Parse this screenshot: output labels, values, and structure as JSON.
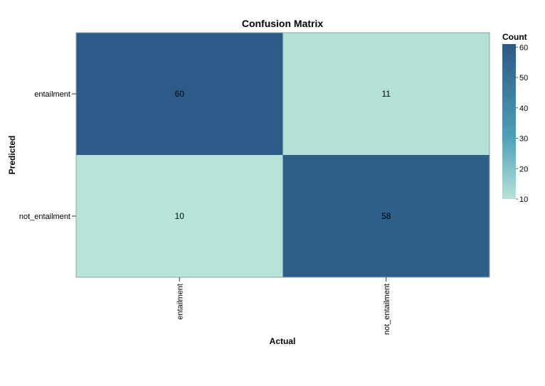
{
  "chart_data": {
    "type": "heatmap",
    "title": "Confusion Matrix",
    "xlabel": "Actual",
    "ylabel": "Predicted",
    "x_categories": [
      "entailment",
      "not_entailment"
    ],
    "y_categories": [
      "entailment",
      "not_entailment"
    ],
    "values": [
      [
        60,
        11
      ],
      [
        10,
        58
      ]
    ],
    "legend": {
      "title": "Count",
      "ticks": [
        60,
        50,
        40,
        30,
        20,
        10
      ],
      "range": [
        10,
        61
      ],
      "placement": "right",
      "colors": [
        "#b8e3d9",
        "#4e9fb7",
        "#2c5985"
      ]
    },
    "grid": false
  }
}
